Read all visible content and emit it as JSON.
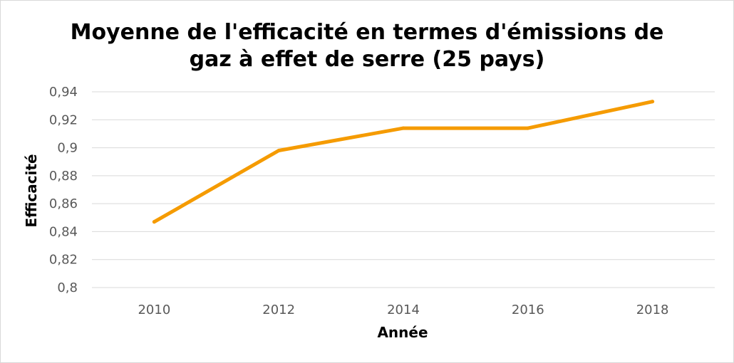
{
  "chart_data": {
    "type": "line",
    "title": "Moyenne de l'efficacité en termes d'émissions de gaz à effet de serre (25 pays)",
    "title_lines": [
      "Moyenne de l'efficacité en termes d'émissions de",
      "gaz à effet de serre (25 pays)"
    ],
    "xlabel": "Année",
    "ylabel": "Efficacité",
    "x": [
      2010,
      2012,
      2014,
      2016,
      2018
    ],
    "series": [
      {
        "values": [
          0.847,
          0.898,
          0.914,
          0.914,
          0.933
        ],
        "color": "#F59B00"
      }
    ],
    "ylim": [
      0.8,
      0.94
    ],
    "yticks": [
      0.8,
      0.82,
      0.84,
      0.86,
      0.88,
      0.9,
      0.92,
      0.94
    ],
    "ytick_labels": [
      "0,8",
      "0,82",
      "0,84",
      "0,86",
      "0,88",
      "0,9",
      "0,92",
      "0,94"
    ],
    "xtick_labels": [
      "2010",
      "2012",
      "2014",
      "2016",
      "2018"
    ],
    "grid": true,
    "legend": "none"
  }
}
